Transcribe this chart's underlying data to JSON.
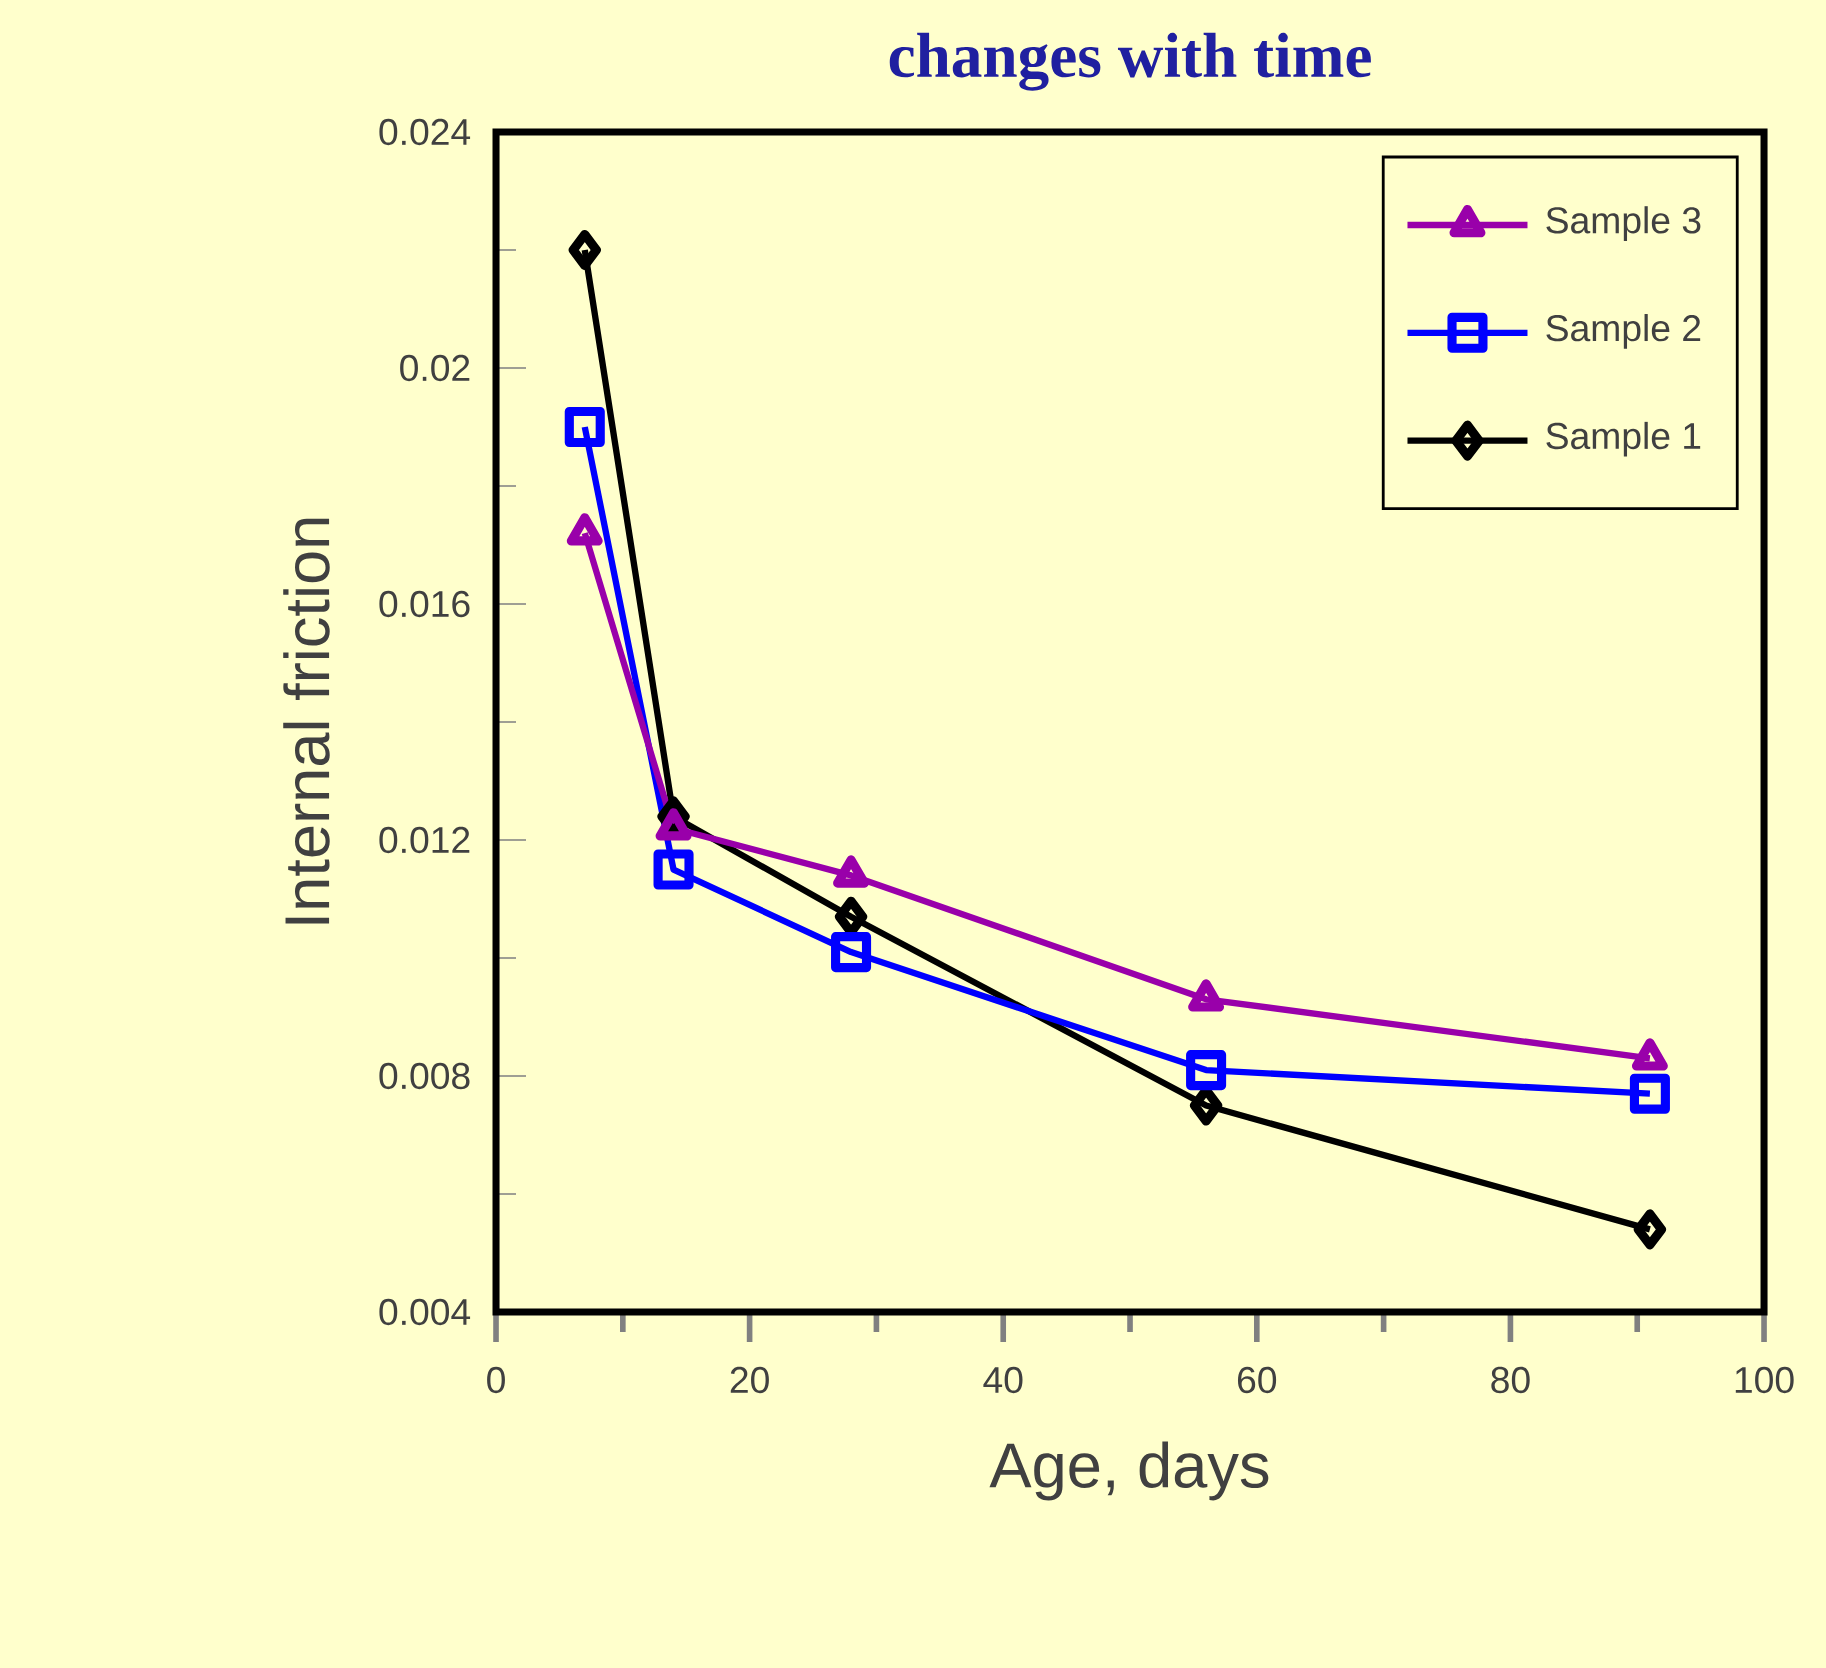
{
  "chart_data": {
    "type": "line",
    "title": "changes with time",
    "xlabel": "Age, days",
    "ylabel": "Internal friction",
    "x": [
      7,
      14,
      28,
      56,
      91
    ],
    "series": [
      {
        "name": "Sample 1",
        "color": "#000000",
        "marker": "diamond",
        "values": [
          0.022,
          0.0124,
          0.0107,
          0.0075,
          0.0054
        ]
      },
      {
        "name": "Sample 2",
        "color": "#0000ff",
        "marker": "square",
        "values": [
          0.019,
          0.0115,
          0.0101,
          0.0081,
          0.0077
        ]
      },
      {
        "name": "Sample 3",
        "color": "#9900aa",
        "marker": "triangle",
        "values": [
          0.0172,
          0.0122,
          0.0114,
          0.0093,
          0.0083
        ]
      }
    ],
    "xlim": [
      0,
      100
    ],
    "xticks": [
      0,
      20,
      40,
      60,
      80,
      100
    ],
    "ylim": [
      0.004,
      0.024
    ],
    "yticks": [
      0.004,
      0.008,
      0.012,
      0.016,
      0.02,
      0.024
    ],
    "legend": "top right",
    "grid": false,
    "line_style": "solid"
  }
}
